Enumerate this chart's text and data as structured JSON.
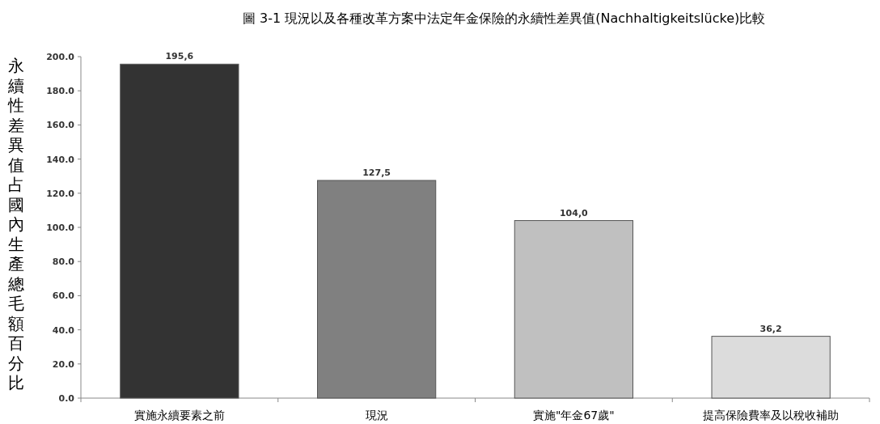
{
  "chart_data": {
    "type": "bar",
    "title": "圖 3-1 現況以及各種改革方案中法定年金保險的永續性差異值(Nachhaltigkeitslücke)比較",
    "ylabel": "永續性差異值占國內生產總毛額百分比",
    "categories": [
      "實施永續要素之前",
      "現況",
      "實施\"年金67歲\"",
      "提高保險費率及以稅收補助"
    ],
    "values": [
      195.6,
      127.5,
      104.0,
      36.2
    ],
    "value_labels": [
      "195,6",
      "127,5",
      "104,0",
      "36,2"
    ],
    "colors": [
      "#333333",
      "#808080",
      "#c0c0c0",
      "#dcdcdc"
    ],
    "ylim": [
      0,
      200
    ],
    "yticks": [
      {
        "value": 0,
        "label": "0.0"
      },
      {
        "value": 20,
        "label": "20.0"
      },
      {
        "value": 40,
        "label": "40.0"
      },
      {
        "value": 60,
        "label": "60.0"
      },
      {
        "value": 80,
        "label": "80.0"
      },
      {
        "value": 100,
        "label": "100.0"
      },
      {
        "value": 120,
        "label": "120.0"
      },
      {
        "value": 140,
        "label": "140.0"
      },
      {
        "value": 160,
        "label": "160.0"
      },
      {
        "value": 180,
        "label": "180.0"
      },
      {
        "value": 200,
        "label": "200.0"
      }
    ],
    "grid": false
  }
}
